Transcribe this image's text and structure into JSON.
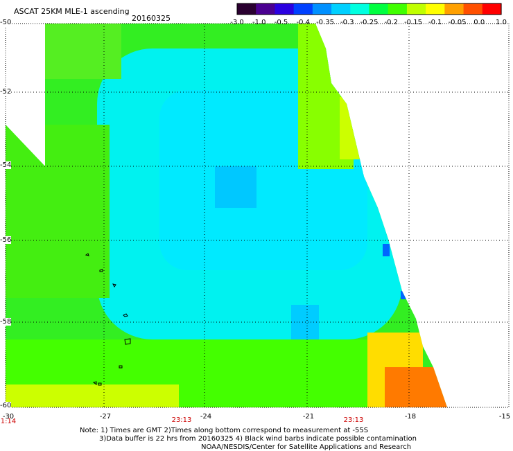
{
  "header": {
    "title": "ASCAT 25KM MLE-1 ascending",
    "date": "20160325"
  },
  "colorbar": {
    "labels": [
      "-3.0",
      "-1.0",
      "-0.5",
      "-0.4",
      "-0.35",
      "-0.3",
      "-0.25",
      "-0.2",
      "-0.15",
      "-0.1",
      "-0.05",
      "0.0",
      "1.0"
    ],
    "colors": [
      "#2a0030",
      "#4a0090",
      "#2a00e0",
      "#0040ff",
      "#0090ff",
      "#00d0ff",
      "#00ffe0",
      "#00ff40",
      "#40ff00",
      "#c0ff00",
      "#ffff00",
      "#ffa000",
      "#ff5000",
      "#ff0000"
    ]
  },
  "axes": {
    "lat_labels": [
      "-50",
      "-52",
      "-54",
      "-56",
      "-58",
      "-60"
    ],
    "lon_labels": [
      "-27",
      "-24",
      "-21",
      "-18",
      "-15"
    ],
    "corner_lon": "-30",
    "times": [
      "1:14",
      "23:13",
      "23:13"
    ]
  },
  "notes": {
    "line1": "Note: 1) Times are GMT 2)Times along bottom correspond to measurement at -55S",
    "line2": "3)Data buffer is 22 hrs from 20160325 4) Black wind barbs indicate possible contamination",
    "line3": "NOAA/NESDIS/Center for Satellite Applications and Research"
  },
  "palette": {
    "green": "#22ee22",
    "lime": "#55ff00",
    "cyan": "#00ffee",
    "aqua": "#00eaff",
    "blue": "#00bbff",
    "deep_blue": "#0066ff",
    "yellow": "#ccff00",
    "orange": "#ff7a00",
    "gold": "#ffcc00"
  }
}
